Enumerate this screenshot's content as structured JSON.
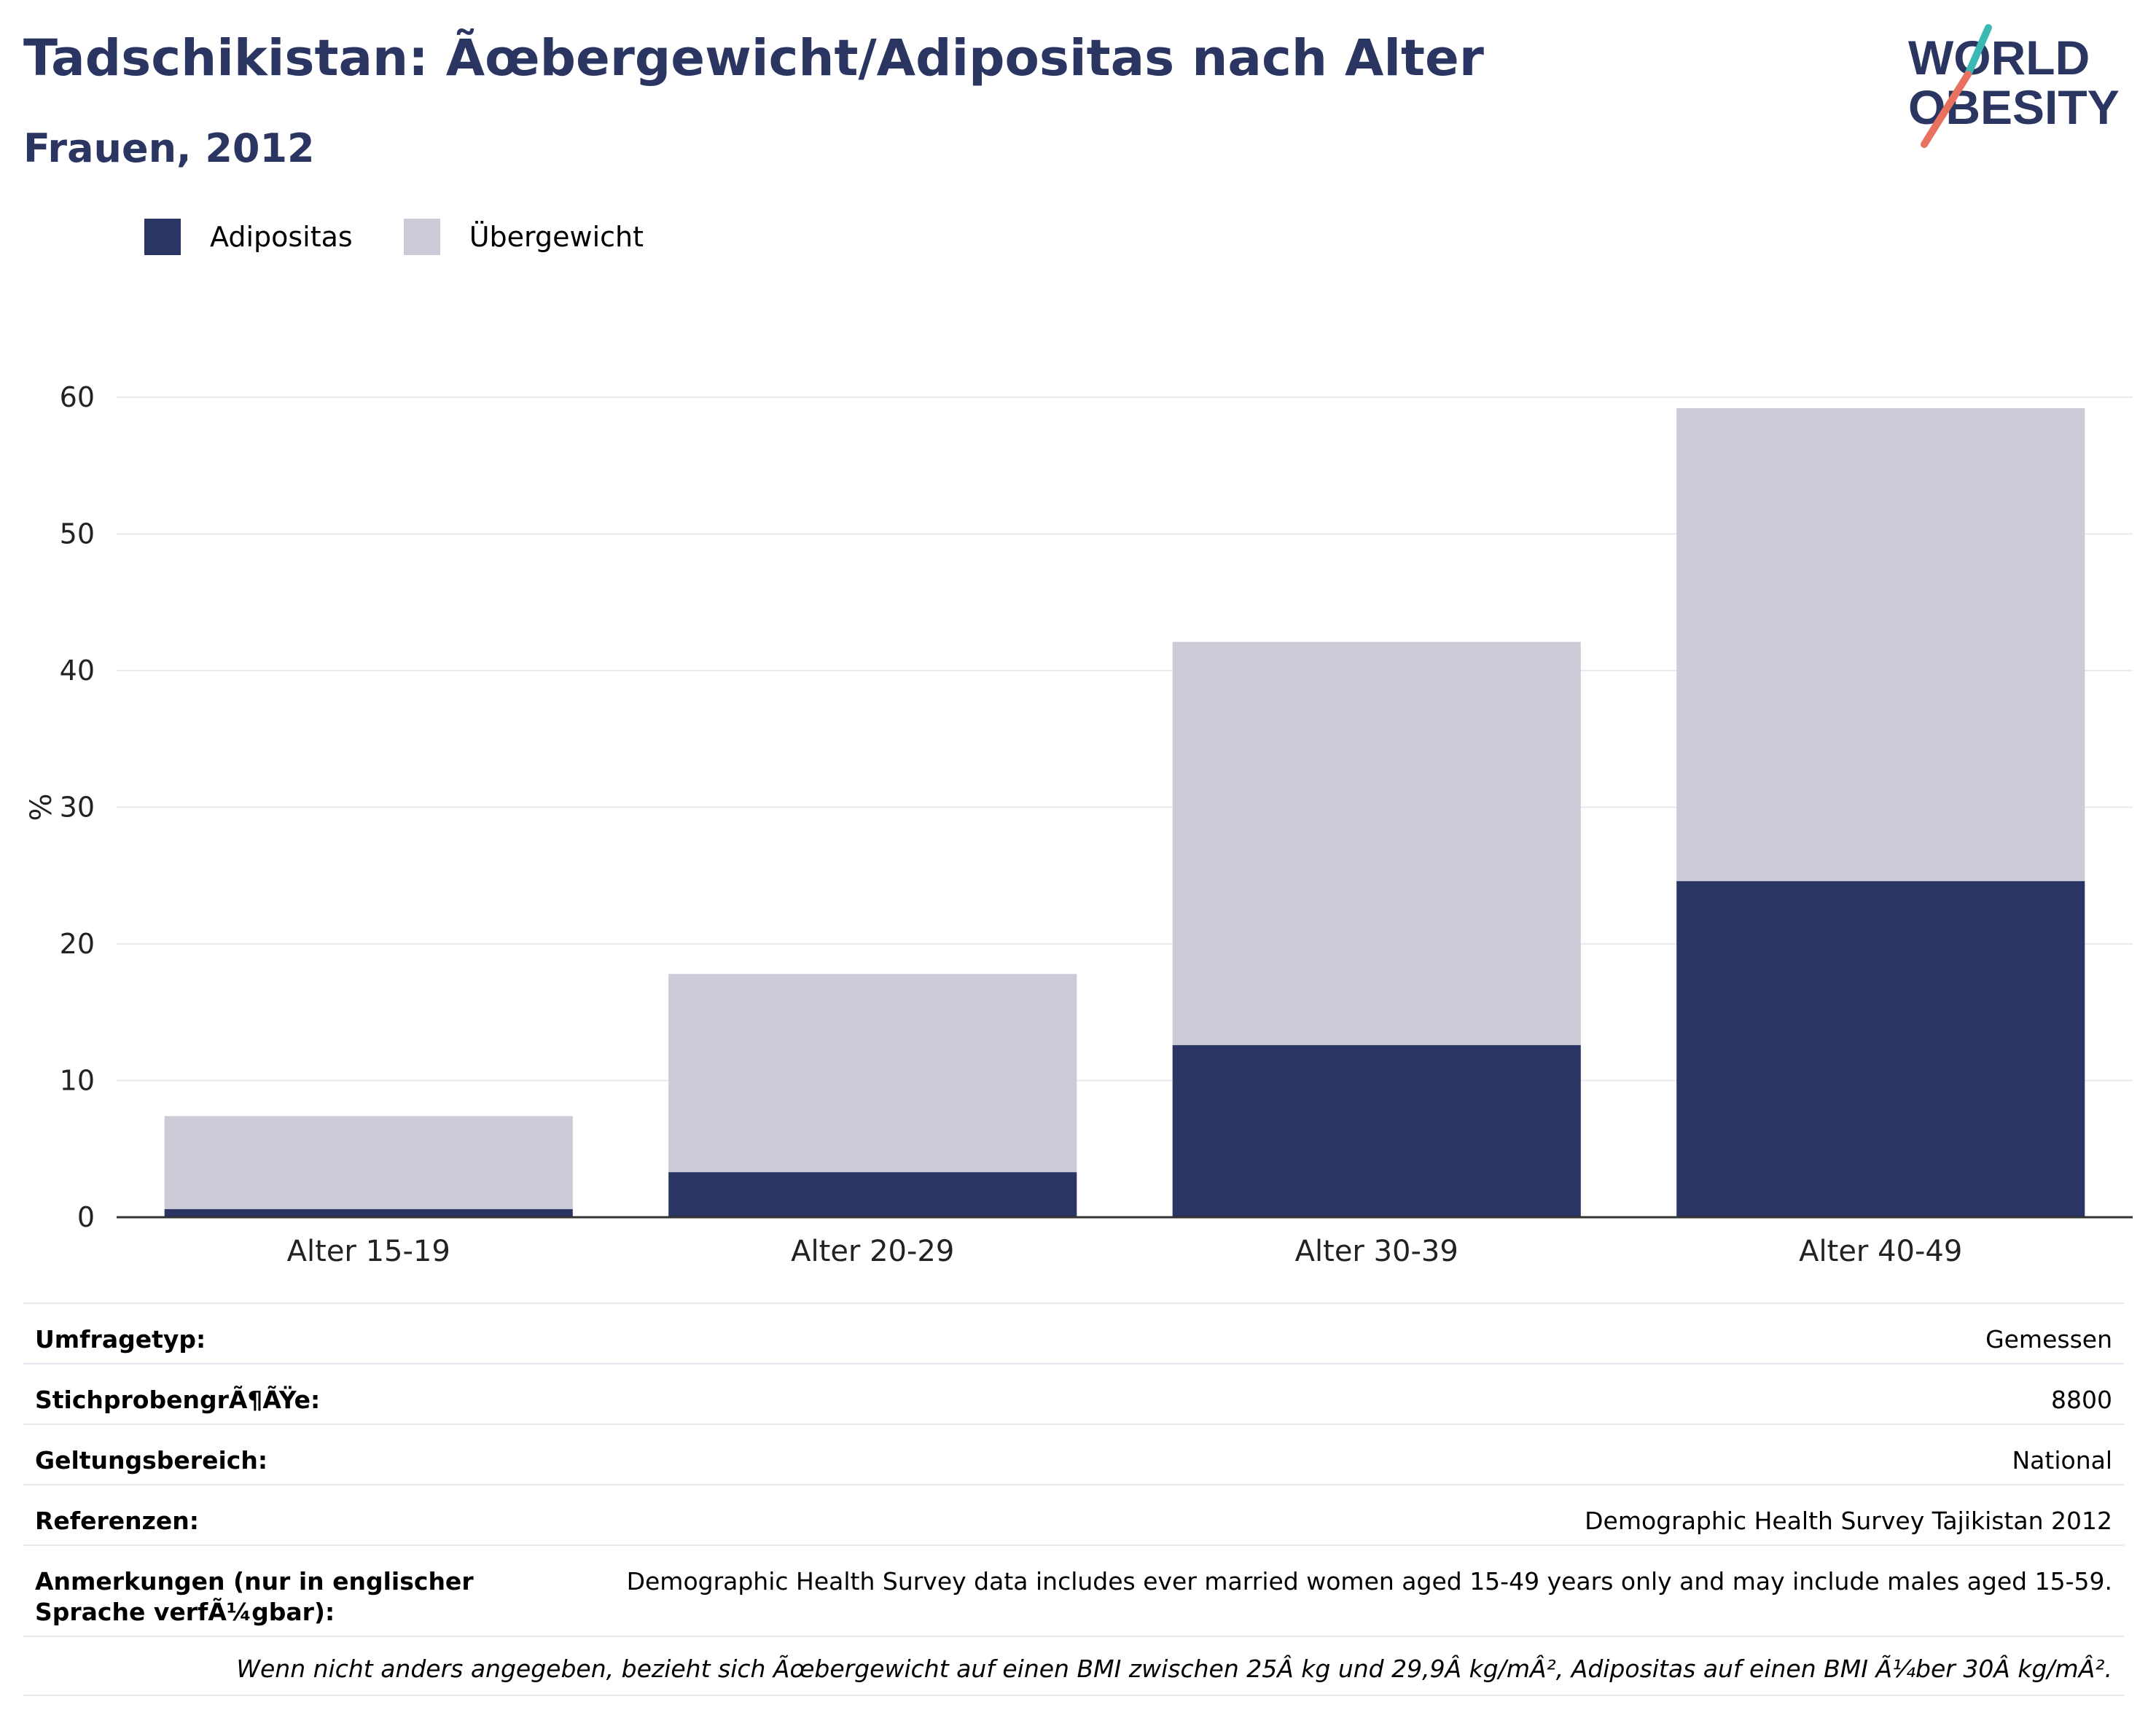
{
  "header": {
    "title": "Tadschikistan: Ãœbergewicht/Adipositas nach Alter",
    "subtitle": "Frauen, 2012"
  },
  "logo": {
    "line1": "WORLD",
    "line2": "OBESITY",
    "icon": "world-obesity-slash-logo"
  },
  "legend": [
    {
      "label": "Adipositas",
      "color": "#2a3563"
    },
    {
      "label": "Übergewicht",
      "color": "#cacbd6"
    }
  ],
  "chart_data": {
    "type": "bar",
    "stacked": true,
    "categories": [
      "Alter 15-19",
      "Alter 20-29",
      "Alter 30-39",
      "Alter 40-49"
    ],
    "series": [
      {
        "name": "Adipositas",
        "values": [
          0.6,
          3.3,
          12.6,
          24.6
        ],
        "color": "#2a3563"
      },
      {
        "name": "Übergewicht",
        "values": [
          6.8,
          14.5,
          29.5,
          34.6
        ],
        "color": "#cacbd6"
      }
    ],
    "ylabel": "%",
    "ylim": [
      0,
      60
    ],
    "yticks": [
      0,
      10,
      20,
      30,
      40,
      50,
      60
    ],
    "grid": true
  },
  "meta": {
    "rows": [
      {
        "key": "Umfragetyp:",
        "value": "Gemessen"
      },
      {
        "key": "StichprobengrÃ¶ÃŸe:",
        "value": "8800"
      },
      {
        "key": "Geltungsbereich:",
        "value": "National"
      },
      {
        "key": "Referenzen:",
        "value": "Demographic Health Survey Tajikistan 2012"
      },
      {
        "key": "Anmerkungen (nur in englischer Sprache verfÃ¼gbar):",
        "value": "Demographic Health Survey data includes ever married women aged 15-49 years only and may include males aged 15-59."
      }
    ],
    "note": "Wenn nicht anders angegeben, bezieht sich Ãœbergewicht auf einen BMI zwischen 25Â kg und 29,9Â kg/mÂ², Adipositas auf einen BMI Ã¼ber 30Â kg/mÂ²."
  }
}
